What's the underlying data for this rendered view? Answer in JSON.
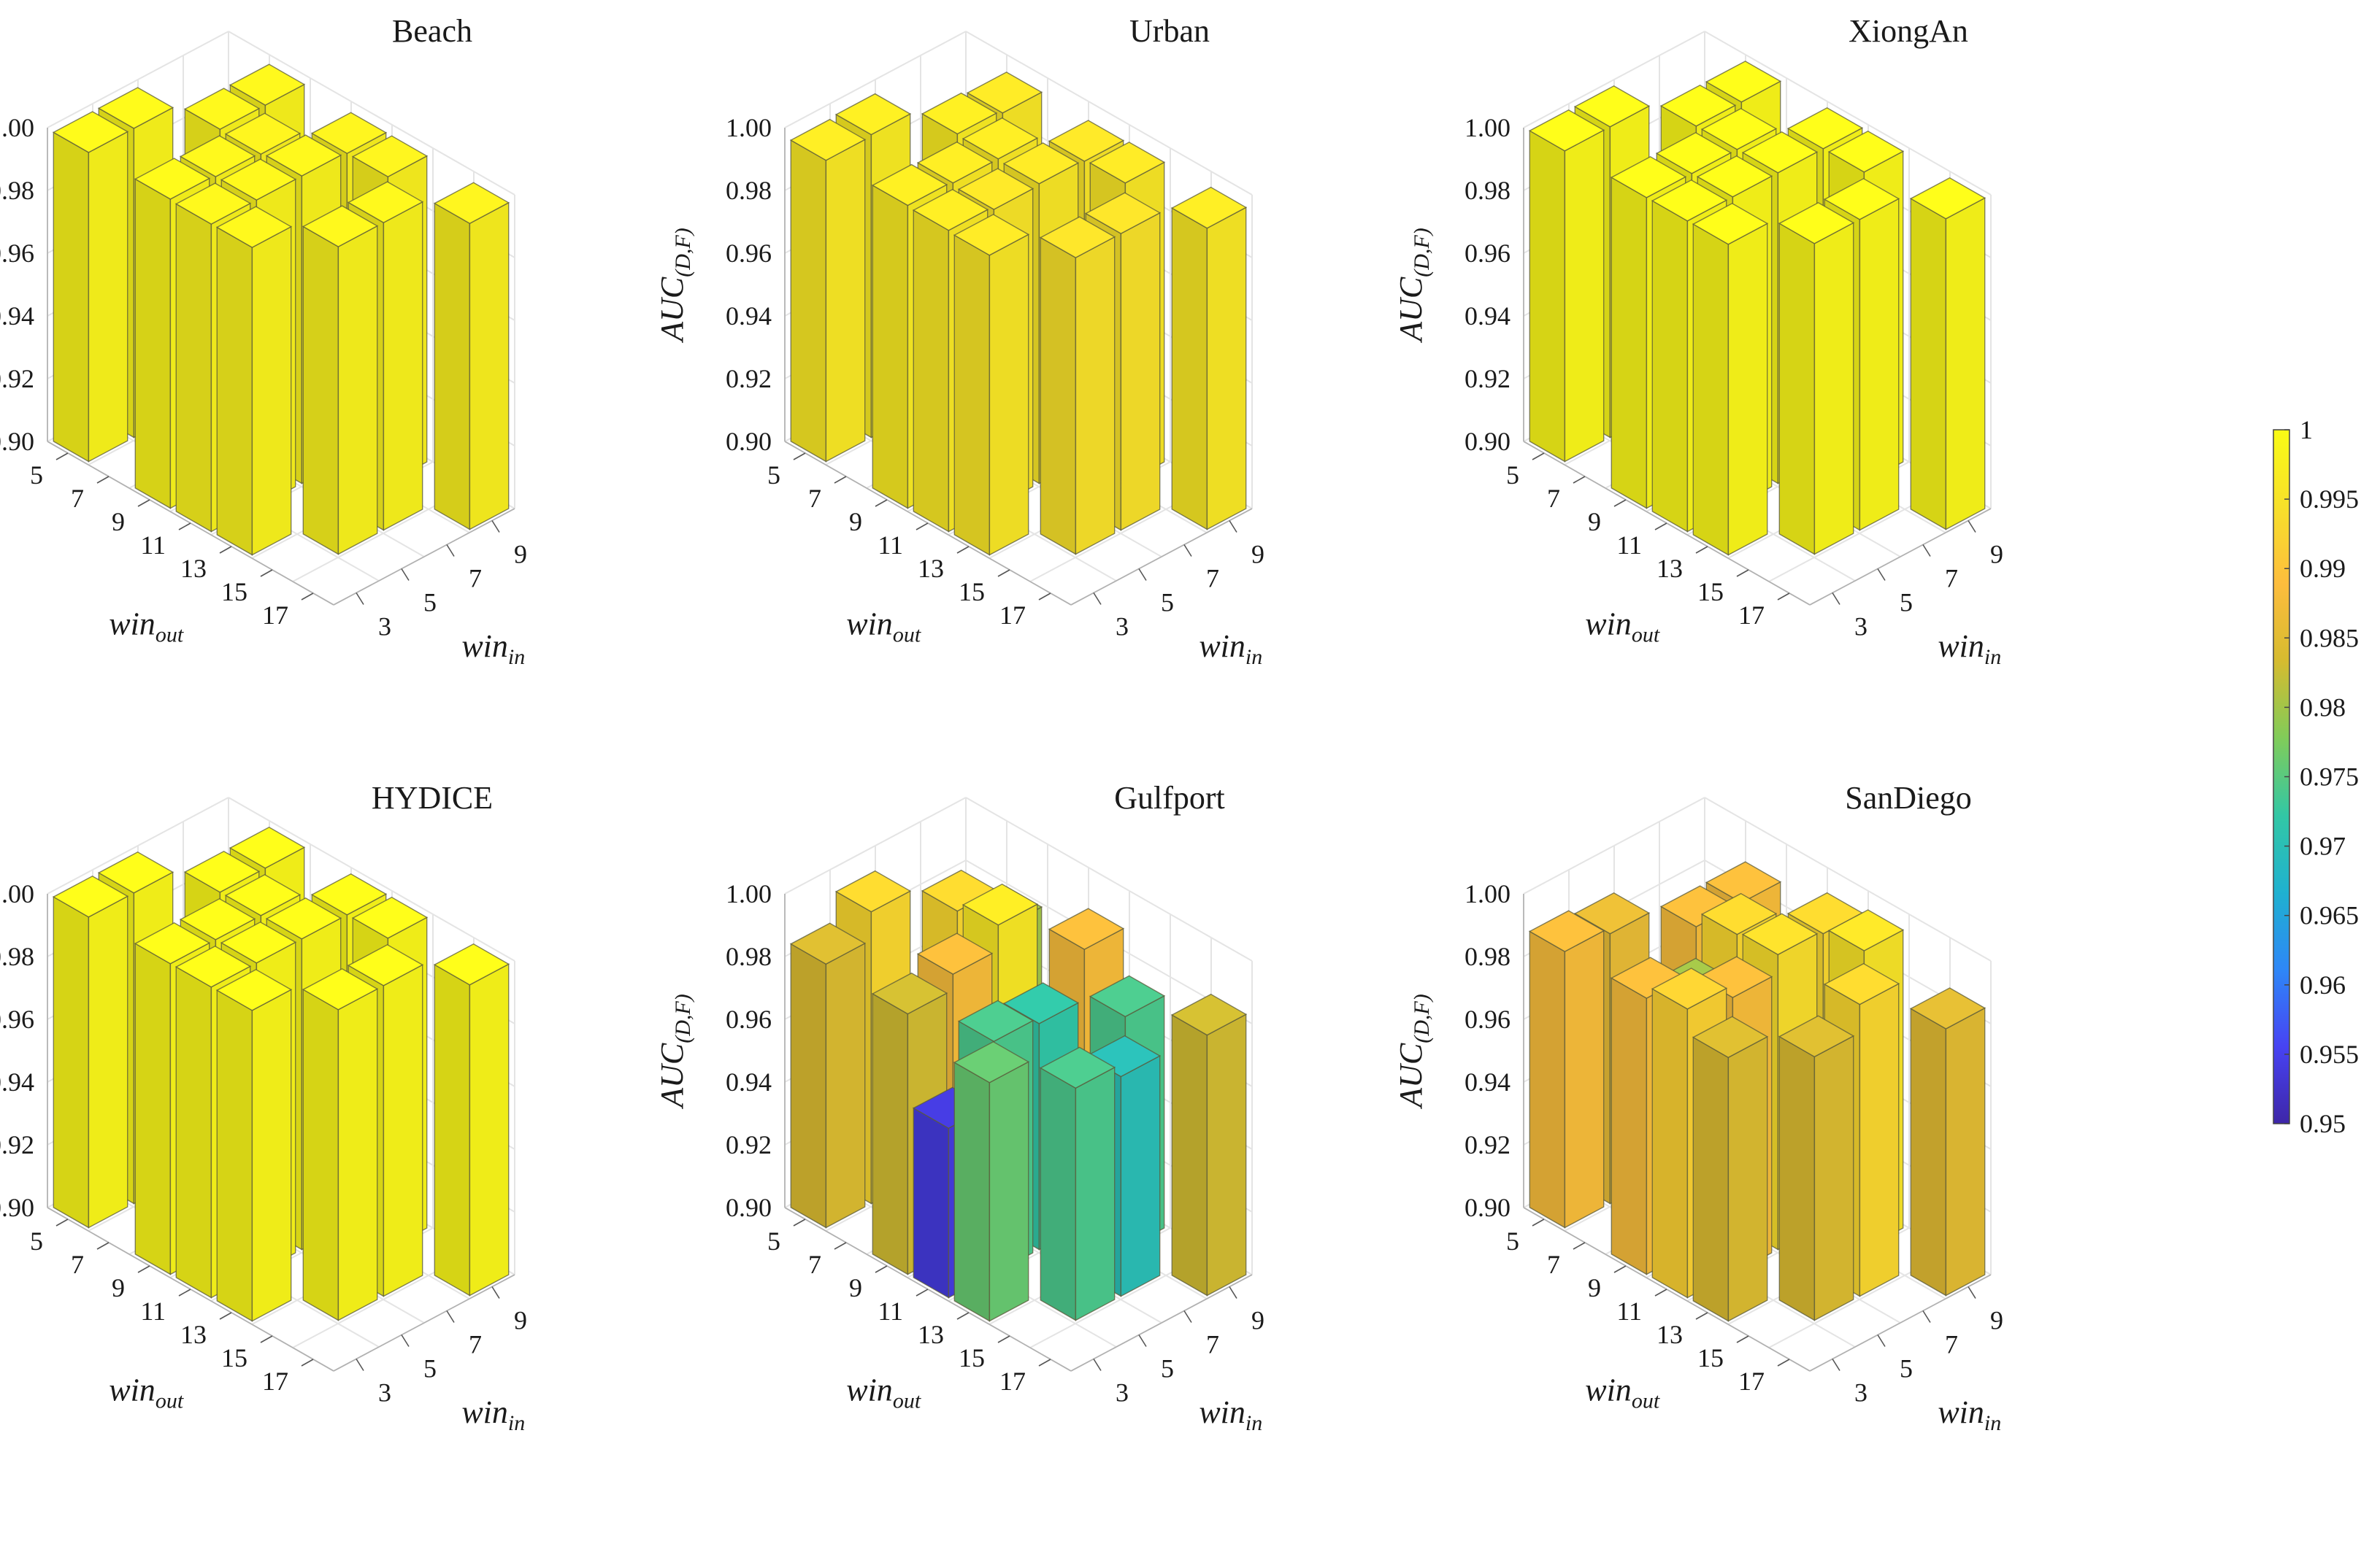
{
  "colorbar": {
    "min": 0.95,
    "max": 1,
    "ticks": [
      "0.95",
      "0.955",
      "0.96",
      "0.965",
      "0.97",
      "0.975",
      "0.98",
      "0.985",
      "0.99",
      "0.995",
      "1"
    ],
    "colormap": [
      "#3e26a8",
      "#4743f3",
      "#2e87f7",
      "#1fb1d0",
      "#32c7a5",
      "#81cc59",
      "#d6bb2f",
      "#fdbd3d",
      "#f7e02a",
      "#f9fb15"
    ]
  },
  "axes": {
    "ylabel": "AUC",
    "ylabel_sub": "(D,F)",
    "xlabel": "win",
    "xlabel_sub": "out",
    "zlabel": "win",
    "zlabel_sub": "in",
    "yticks": [
      "0.90",
      "0.92",
      "0.94",
      "0.96",
      "0.98",
      "1.00"
    ],
    "ylim": [
      0.9,
      1.0
    ],
    "winout_ticks": [
      "5",
      "7",
      "9",
      "11",
      "13",
      "15",
      "17"
    ],
    "winin_ticks": [
      "3",
      "5",
      "7",
      "9"
    ]
  },
  "chart_data": [
    {
      "type": "bar3d",
      "title": "Beach",
      "grid": [
        {
          "win_out": 5,
          "win_in": 3,
          "value": 0.9985
        },
        {
          "win_out": 9,
          "win_in": 3,
          "value": 0.9985
        },
        {
          "win_out": 11,
          "win_in": 3,
          "value": 0.998
        },
        {
          "win_out": 13,
          "win_in": 3,
          "value": 0.998
        },
        {
          "win_out": 5,
          "win_in": 5,
          "value": 0.9985
        },
        {
          "win_out": 9,
          "win_in": 5,
          "value": 0.998
        },
        {
          "win_out": 11,
          "win_in": 5,
          "value": 0.998
        },
        {
          "win_out": 15,
          "win_in": 5,
          "value": 0.998
        },
        {
          "win_out": 7,
          "win_in": 7,
          "value": 0.998
        },
        {
          "win_out": 9,
          "win_in": 7,
          "value": 0.9975
        },
        {
          "win_out": 11,
          "win_in": 7,
          "value": 0.998
        },
        {
          "win_out": 15,
          "win_in": 7,
          "value": 0.998
        },
        {
          "win_out": 7,
          "win_in": 9,
          "value": 0.998
        },
        {
          "win_out": 11,
          "win_in": 9,
          "value": 0.9975
        },
        {
          "win_out": 13,
          "win_in": 9,
          "value": 0.9975
        },
        {
          "win_out": 17,
          "win_in": 9,
          "value": 0.9975
        }
      ]
    },
    {
      "type": "bar3d",
      "title": "Urban",
      "grid": [
        {
          "win_out": 5,
          "win_in": 3,
          "value": 0.996
        },
        {
          "win_out": 9,
          "win_in": 3,
          "value": 0.9965
        },
        {
          "win_out": 11,
          "win_in": 3,
          "value": 0.996
        },
        {
          "win_out": 13,
          "win_in": 3,
          "value": 0.9955
        },
        {
          "win_out": 5,
          "win_in": 5,
          "value": 0.9965
        },
        {
          "win_out": 9,
          "win_in": 5,
          "value": 0.996
        },
        {
          "win_out": 11,
          "win_in": 5,
          "value": 0.995
        },
        {
          "win_out": 15,
          "win_in": 5,
          "value": 0.9945
        },
        {
          "win_out": 7,
          "win_in": 7,
          "value": 0.9965
        },
        {
          "win_out": 9,
          "win_in": 7,
          "value": 0.996
        },
        {
          "win_out": 11,
          "win_in": 7,
          "value": 0.9955
        },
        {
          "win_out": 15,
          "win_in": 7,
          "value": 0.9945
        },
        {
          "win_out": 7,
          "win_in": 9,
          "value": 0.9955
        },
        {
          "win_out": 11,
          "win_in": 9,
          "value": 0.995
        },
        {
          "win_out": 13,
          "win_in": 9,
          "value": 0.9955
        },
        {
          "win_out": 17,
          "win_in": 9,
          "value": 0.996
        }
      ]
    },
    {
      "type": "bar3d",
      "title": "XiongAn",
      "grid": [
        {
          "win_out": 5,
          "win_in": 3,
          "value": 0.999
        },
        {
          "win_out": 9,
          "win_in": 3,
          "value": 0.999
        },
        {
          "win_out": 11,
          "win_in": 3,
          "value": 0.999
        },
        {
          "win_out": 13,
          "win_in": 3,
          "value": 0.999
        },
        {
          "win_out": 5,
          "win_in": 5,
          "value": 0.999
        },
        {
          "win_out": 9,
          "win_in": 5,
          "value": 0.999
        },
        {
          "win_out": 11,
          "win_in": 5,
          "value": 0.999
        },
        {
          "win_out": 15,
          "win_in": 5,
          "value": 0.999
        },
        {
          "win_out": 7,
          "win_in": 7,
          "value": 0.999
        },
        {
          "win_out": 9,
          "win_in": 7,
          "value": 0.999
        },
        {
          "win_out": 11,
          "win_in": 7,
          "value": 0.999
        },
        {
          "win_out": 15,
          "win_in": 7,
          "value": 0.999
        },
        {
          "win_out": 7,
          "win_in": 9,
          "value": 0.999
        },
        {
          "win_out": 11,
          "win_in": 9,
          "value": 0.999
        },
        {
          "win_out": 13,
          "win_in": 9,
          "value": 0.999
        },
        {
          "win_out": 17,
          "win_in": 9,
          "value": 0.999
        }
      ]
    },
    {
      "type": "bar3d",
      "title": "HYDICE",
      "grid": [
        {
          "win_out": 5,
          "win_in": 3,
          "value": 0.999
        },
        {
          "win_out": 9,
          "win_in": 3,
          "value": 0.999
        },
        {
          "win_out": 11,
          "win_in": 3,
          "value": 0.999
        },
        {
          "win_out": 13,
          "win_in": 3,
          "value": 0.999
        },
        {
          "win_out": 5,
          "win_in": 5,
          "value": 0.999
        },
        {
          "win_out": 9,
          "win_in": 5,
          "value": 0.999
        },
        {
          "win_out": 11,
          "win_in": 5,
          "value": 0.999
        },
        {
          "win_out": 15,
          "win_in": 5,
          "value": 0.999
        },
        {
          "win_out": 7,
          "win_in": 7,
          "value": 0.999
        },
        {
          "win_out": 9,
          "win_in": 7,
          "value": 0.999
        },
        {
          "win_out": 11,
          "win_in": 7,
          "value": 0.999
        },
        {
          "win_out": 15,
          "win_in": 7,
          "value": 0.999
        },
        {
          "win_out": 7,
          "win_in": 9,
          "value": 0.999
        },
        {
          "win_out": 11,
          "win_in": 9,
          "value": 0.999
        },
        {
          "win_out": 13,
          "win_in": 9,
          "value": 0.999
        },
        {
          "win_out": 17,
          "win_in": 9,
          "value": 0.999
        }
      ]
    },
    {
      "type": "bar3d",
      "title": "Gulfport",
      "grid": [
        {
          "win_out": 5,
          "win_in": 3,
          "value": 0.984
        },
        {
          "win_out": 9,
          "win_in": 3,
          "value": 0.983
        },
        {
          "win_out": 11,
          "win_in": 3,
          "value": 0.954
        },
        {
          "win_out": 13,
          "win_in": 3,
          "value": 0.976
        },
        {
          "win_out": 5,
          "win_in": 5,
          "value": 0.993
        },
        {
          "win_out": 9,
          "win_in": 5,
          "value": 0.988
        },
        {
          "win_out": 11,
          "win_in": 5,
          "value": 0.974
        },
        {
          "win_out": 15,
          "win_in": 5,
          "value": 0.974
        },
        {
          "win_out": 7,
          "win_in": 7,
          "value": 0.993
        },
        {
          "win_out": 9,
          "win_in": 7,
          "value": 0.996
        },
        {
          "win_out": 11,
          "win_in": 7,
          "value": 0.972
        },
        {
          "win_out": 15,
          "win_in": 7,
          "value": 0.97
        },
        {
          "win_out": 7,
          "win_in": 9,
          "value": 0.98
        },
        {
          "win_out": 11,
          "win_in": 9,
          "value": 0.988
        },
        {
          "win_out": 13,
          "win_in": 9,
          "value": 0.974
        },
        {
          "win_out": 17,
          "win_in": 9,
          "value": 0.983
        }
      ]
    },
    {
      "type": "bar3d",
      "title": "SanDiego",
      "grid": [
        {
          "win_out": 5,
          "win_in": 3,
          "value": 0.988
        },
        {
          "win_out": 9,
          "win_in": 3,
          "value": 0.988
        },
        {
          "win_out": 11,
          "win_in": 3,
          "value": 0.992
        },
        {
          "win_out": 13,
          "win_in": 3,
          "value": 0.984
        },
        {
          "win_out": 5,
          "win_in": 5,
          "value": 0.986
        },
        {
          "win_out": 9,
          "win_in": 5,
          "value": 0.98
        },
        {
          "win_out": 11,
          "win_in": 5,
          "value": 0.988
        },
        {
          "win_out": 15,
          "win_in": 5,
          "value": 0.984
        },
        {
          "win_out": 7,
          "win_in": 7,
          "value": 0.988
        },
        {
          "win_out": 9,
          "win_in": 7,
          "value": 0.993
        },
        {
          "win_out": 11,
          "win_in": 7,
          "value": 0.994
        },
        {
          "win_out": 15,
          "win_in": 7,
          "value": 0.993
        },
        {
          "win_out": 7,
          "win_in": 9,
          "value": 0.988
        },
        {
          "win_out": 11,
          "win_in": 9,
          "value": 0.993
        },
        {
          "win_out": 13,
          "win_in": 9,
          "value": 0.995
        },
        {
          "win_out": 17,
          "win_in": 9,
          "value": 0.985
        }
      ]
    }
  ]
}
